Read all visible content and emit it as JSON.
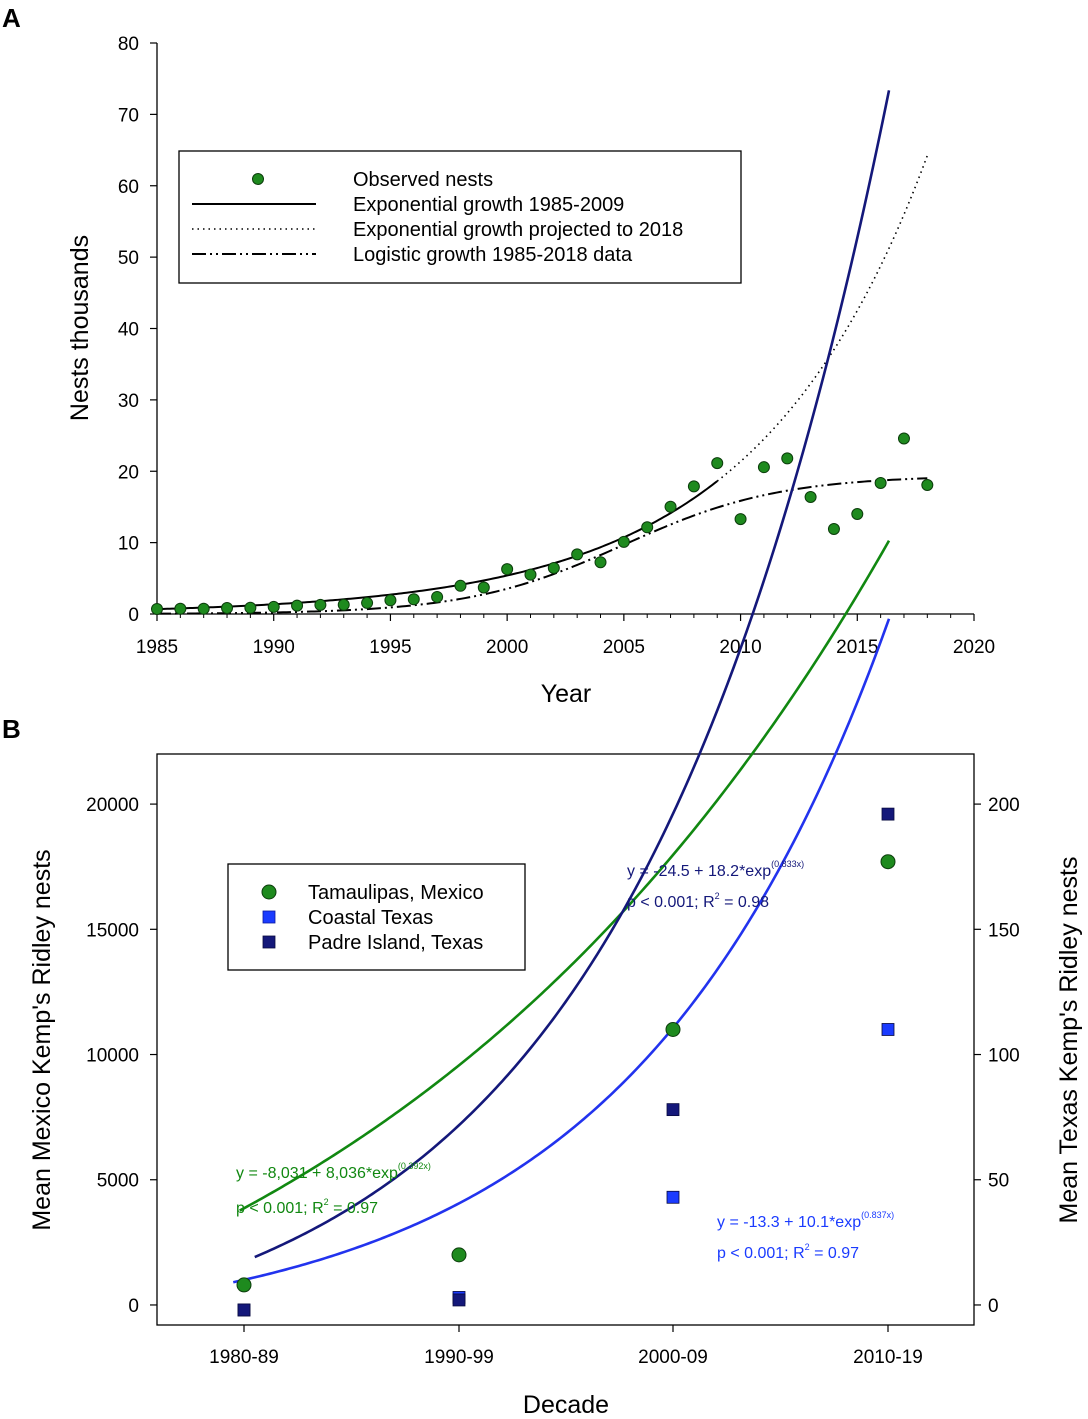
{
  "chart_data": [
    {
      "type": "scatter",
      "panel_label": "A",
      "xlabel": "Year",
      "ylabel": "Nests thousands",
      "xlim": [
        1985,
        2020
      ],
      "ylim": [
        0,
        80
      ],
      "xticks": [
        1985,
        1990,
        1995,
        2000,
        2005,
        2010,
        2015,
        2020
      ],
      "yticks": [
        0,
        10,
        20,
        30,
        40,
        50,
        60,
        70,
        80
      ],
      "legend_position": "upper-left",
      "colors": {
        "points": "#1e8a1e",
        "points_stroke": "#0c3d0c",
        "lines": "#000000"
      },
      "series": [
        {
          "name": "Observed nests",
          "kind": "points",
          "x": [
            1985,
            1986,
            1987,
            1988,
            1989,
            1990,
            1991,
            1992,
            1993,
            1994,
            1995,
            1996,
            1997,
            1998,
            1999,
            2000,
            2001,
            2002,
            2003,
            2004,
            2005,
            2006,
            2007,
            2008,
            2009,
            2010,
            2011,
            2012,
            2013,
            2014,
            2015,
            2016,
            2017,
            2018
          ],
          "y": [
            0.7,
            0.74,
            0.74,
            0.84,
            0.87,
            0.99,
            1.18,
            1.28,
            1.29,
            1.55,
            1.92,
            2.06,
            2.39,
            3.95,
            3.71,
            6.28,
            5.51,
            6.45,
            8.35,
            7.25,
            10.1,
            12.15,
            15.03,
            17.88,
            21.14,
            13.3,
            20.57,
            21.8,
            16.39,
            11.91,
            14.01,
            18.35,
            24.59,
            18.07
          ]
        },
        {
          "name": "Exponential growth 1985-2009",
          "kind": "curve",
          "style": "solid",
          "equation": "y = 0.685 * exp(0.1376 * (year - 1985))",
          "x_range": [
            1985,
            2009
          ]
        },
        {
          "name": "Exponential growth projected to 2018",
          "kind": "curve",
          "style": "dotted",
          "equation": "y = 0.685 * exp(0.1376 * (year - 1985))",
          "x_range": [
            2009,
            2018
          ]
        },
        {
          "name": "Logistic growth 1985-2018 data",
          "kind": "curve",
          "style": "dashdotdot",
          "equation": "y = 19.4 / (1 + exp(-0.3 * (year - 2005)))",
          "x_range": [
            1985,
            2018
          ]
        }
      ]
    },
    {
      "type": "scatter",
      "panel_label": "B",
      "xlabel": "Decade",
      "ylabel": "Mean Mexico Kemp's Ridley nests",
      "ylabel_right": "Mean Texas Kemp's Ridley nests",
      "categories": [
        "1980-89",
        "1990-99",
        "2000-09",
        "2010-19"
      ],
      "ylim_left": [
        -800,
        22000
      ],
      "ylim_right": [
        -8,
        220
      ],
      "yticks_left": [
        0,
        5000,
        10000,
        15000,
        20000
      ],
      "yticks_right": [
        0,
        50,
        100,
        150,
        200
      ],
      "legend_position": "upper-left",
      "series": [
        {
          "name": "Tamaulipas, Mexico",
          "axis": "left",
          "marker": "circle",
          "color": "#1e8a1e",
          "line_color": "#118811",
          "values": [
            800,
            2000,
            11000,
            17700
          ],
          "fit": {
            "a": -8031,
            "b": 8036,
            "k": 0.392
          },
          "equation_label": "y = -8,031 + 8,036*exp",
          "equation_exp": "(0.392x)",
          "stats_label": "p < 0.001; R",
          "stats_sup": "2",
          "stats_tail": " = 0.97"
        },
        {
          "name": "Coastal Texas",
          "axis": "right",
          "marker": "square",
          "color": "#1a3bff",
          "line_color": "#2233ee",
          "values": [
            -2,
            3,
            43,
            110
          ],
          "fit": {
            "a": -13.3,
            "b": 10.1,
            "k": 0.837
          },
          "equation_label": "y = -13.3 + 10.1*exp",
          "equation_exp": "(0.837x)",
          "stats_label": "p < 0.001; R",
          "stats_sup": "2",
          "stats_tail": " = 0.97"
        },
        {
          "name": "Padre Island, Texas",
          "axis": "right",
          "marker": "square",
          "color": "#14187a",
          "line_color": "#14187a",
          "values": [
            -2,
            2,
            78,
            196
          ],
          "fit": {
            "a": -24.5,
            "b": 18.2,
            "k": 0.833
          },
          "equation_label": "y = -24.5 + 18.2*exp",
          "equation_exp": "(0.833x)",
          "stats_label": "p < 0.001; R",
          "stats_sup": "2",
          "stats_tail": " = 0.98"
        }
      ]
    }
  ]
}
